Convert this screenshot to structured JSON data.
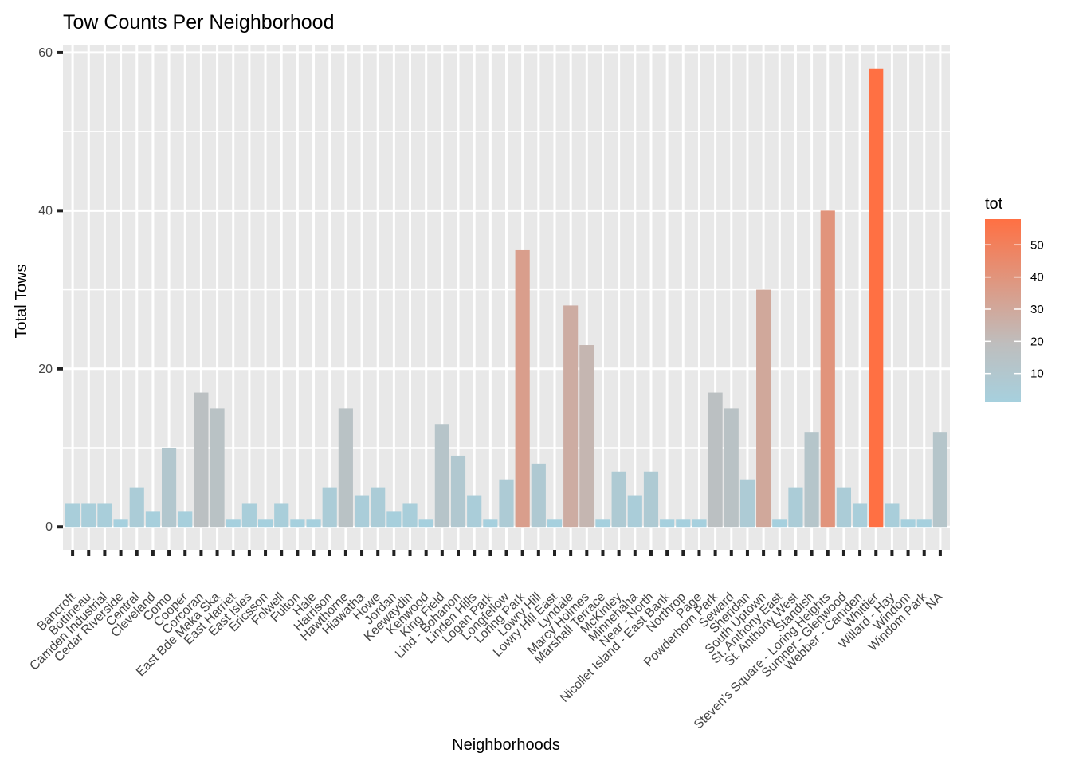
{
  "chart_data": {
    "type": "bar",
    "title": "Tow Counts Per Neighborhood",
    "xlabel": "Neighborhoods",
    "ylabel": "Total Tows",
    "ylim": [
      -2.9,
      61
    ],
    "yticks": [
      0,
      20,
      40,
      60
    ],
    "grid": true,
    "categories": [
      "Bancroft",
      "Bottineau",
      "Camden Industrial",
      "Cedar Riverside",
      "Central",
      "Cleveland",
      "Como",
      "Cooper",
      "Corcoran",
      "East Bde Maka Ska",
      "East Harriet",
      "East Isles",
      "Ericsson",
      "Folwell",
      "Fulton",
      "Hale",
      "Harrison",
      "Hawthorne",
      "Hiawatha",
      "Howe",
      "Jordan",
      "Keewaydin",
      "Kenwood",
      "King Field",
      "Lind - Bohanon",
      "Linden Hills",
      "Logan Park",
      "Longfellow",
      "Loring Park",
      "Lowry Hill",
      "Lowry Hill East",
      "Lyndale",
      "Marcy Holmes",
      "Marshall Terrace",
      "McKinley",
      "Minnehaha",
      "Near - North",
      "Nicollet Island - East Bank",
      "Northrop",
      "Page",
      "Powderhorn Park",
      "Seward",
      "Sheridan",
      "South Uptown",
      "St. Anthony East",
      "St. Anthony West",
      "Standish",
      "Steven's Square - Loring Heights",
      "Sumner - Glenwood",
      "Webber - Camden",
      "Whittier",
      "Willard - Hay",
      "Windom",
      "Windom Park",
      "NA"
    ],
    "values": [
      3,
      3,
      3,
      1,
      5,
      2,
      10,
      2,
      17,
      15,
      1,
      3,
      1,
      3,
      1,
      1,
      5,
      15,
      4,
      5,
      2,
      3,
      1,
      13,
      9,
      4,
      1,
      6,
      35,
      8,
      1,
      28,
      23,
      1,
      7,
      4,
      7,
      1,
      1,
      1,
      17,
      15,
      6,
      30,
      1,
      5,
      12,
      40,
      5,
      3,
      58,
      3,
      1,
      1,
      12
    ],
    "legend": {
      "title": "tot",
      "placement": "right",
      "ticks": [
        10,
        20,
        30,
        40,
        50
      ],
      "range": [
        1,
        58
      ],
      "low_color": "#a6d0de",
      "mid_color": "#bebebe",
      "high_color": "#ff7043"
    }
  }
}
